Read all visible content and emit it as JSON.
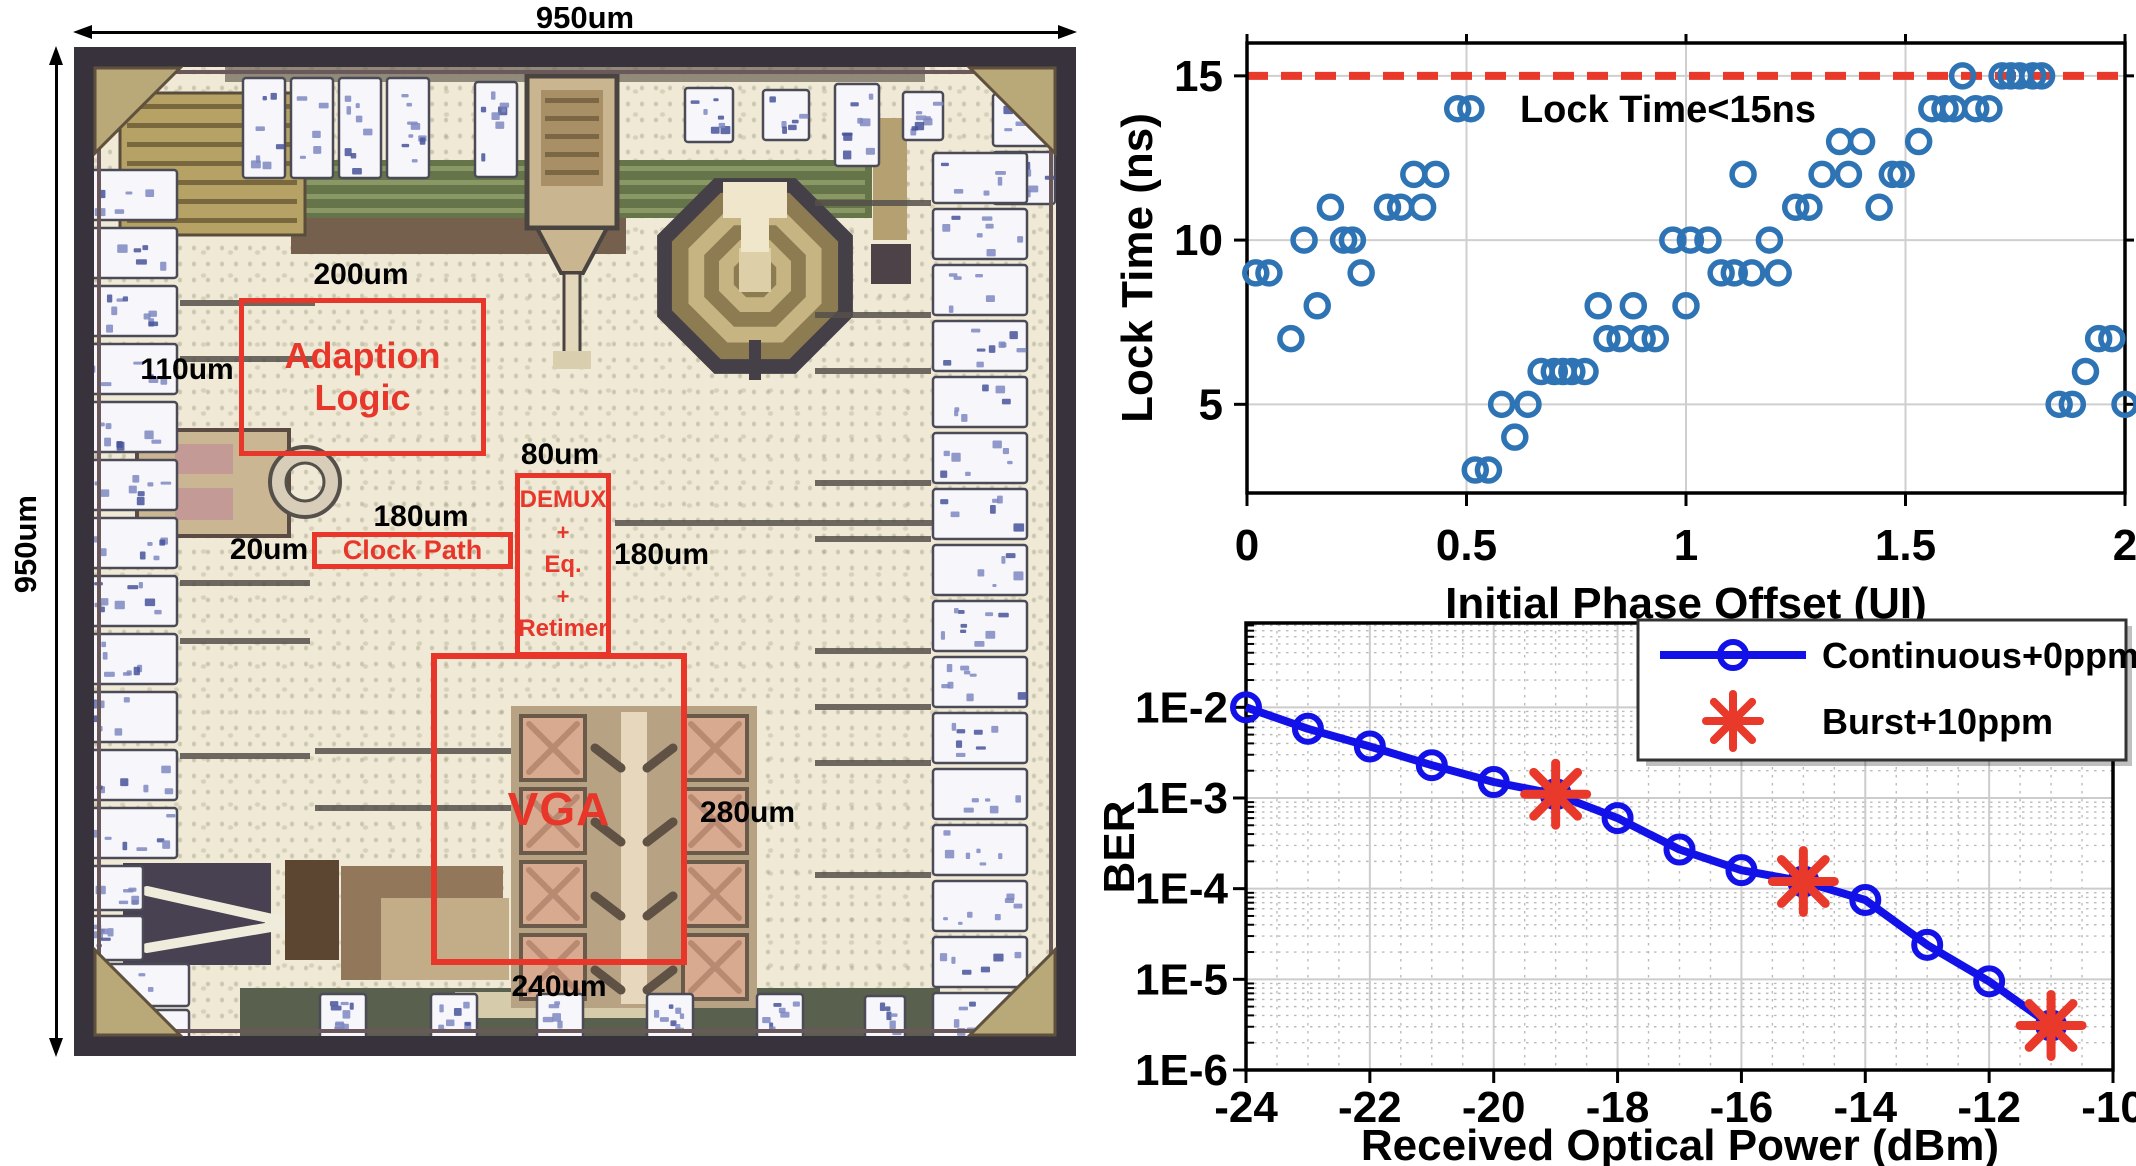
{
  "die": {
    "h_dim": "950um",
    "v_dim": "950um",
    "labels": {
      "adaption_l1": "Adaption",
      "adaption_l2": "Logic",
      "clock": "Clock Path",
      "demux_l1": "DEMUX",
      "demux_plus1": "+",
      "demux_l2": "Eq.",
      "demux_plus2": "+",
      "demux_l3": "Retimer",
      "vga": "VGA"
    },
    "dims": {
      "adaption_top": "200um",
      "adaption_left": "110um",
      "demux_top": "80um",
      "demux_right": "180um",
      "clock_top": "180um",
      "clock_left": "20um",
      "vga_right": "280um",
      "vga_bottom": "240um"
    }
  },
  "chart_data": [
    {
      "id": "lock_time",
      "type": "scatter",
      "title": "",
      "xlabel": "Initial Phase Offset (UI)",
      "ylabel": "Lock Time (ns)",
      "xlim": [
        0,
        2
      ],
      "ylim": [
        2.3,
        16
      ],
      "xticks": [
        0,
        0.5,
        1,
        1.5,
        2
      ],
      "xtick_labels": [
        "0",
        "0.5",
        "1",
        "1.5",
        "2"
      ],
      "yticks": [
        5,
        10,
        15
      ],
      "ytick_labels": [
        "5",
        "10",
        "15"
      ],
      "grid": true,
      "marker_color": "#2e74b5",
      "threshold": {
        "value": 15,
        "color": "#e8392b",
        "style": "dashed",
        "label": "Lock Time<15ns"
      },
      "points": [
        [
          0.02,
          9
        ],
        [
          0.05,
          9
        ],
        [
          0.1,
          7
        ],
        [
          0.13,
          10
        ],
        [
          0.16,
          8
        ],
        [
          0.19,
          11
        ],
        [
          0.22,
          10
        ],
        [
          0.24,
          10
        ],
        [
          0.26,
          9
        ],
        [
          0.32,
          11
        ],
        [
          0.35,
          11
        ],
        [
          0.38,
          12
        ],
        [
          0.4,
          11
        ],
        [
          0.43,
          12
        ],
        [
          0.48,
          14
        ],
        [
          0.51,
          14
        ],
        [
          0.52,
          3
        ],
        [
          0.55,
          3
        ],
        [
          0.58,
          5
        ],
        [
          0.61,
          4
        ],
        [
          0.64,
          5
        ],
        [
          0.67,
          6
        ],
        [
          0.7,
          6
        ],
        [
          0.72,
          6
        ],
        [
          0.74,
          6
        ],
        [
          0.77,
          6
        ],
        [
          0.8,
          8
        ],
        [
          0.82,
          7
        ],
        [
          0.85,
          7
        ],
        [
          0.88,
          8
        ],
        [
          0.9,
          7
        ],
        [
          0.93,
          7
        ],
        [
          0.97,
          10
        ],
        [
          1.0,
          8
        ],
        [
          1.01,
          10
        ],
        [
          1.05,
          10
        ],
        [
          1.08,
          9
        ],
        [
          1.11,
          9
        ],
        [
          1.13,
          12
        ],
        [
          1.15,
          9
        ],
        [
          1.19,
          10
        ],
        [
          1.21,
          9
        ],
        [
          1.25,
          11
        ],
        [
          1.28,
          11
        ],
        [
          1.31,
          12
        ],
        [
          1.35,
          13
        ],
        [
          1.37,
          12
        ],
        [
          1.4,
          13
        ],
        [
          1.44,
          11
        ],
        [
          1.47,
          12
        ],
        [
          1.49,
          12
        ],
        [
          1.53,
          13
        ],
        [
          1.56,
          14
        ],
        [
          1.59,
          14
        ],
        [
          1.61,
          14
        ],
        [
          1.63,
          15
        ],
        [
          1.66,
          14
        ],
        [
          1.69,
          14
        ],
        [
          1.72,
          15
        ],
        [
          1.74,
          15
        ],
        [
          1.76,
          15
        ],
        [
          1.79,
          15
        ],
        [
          1.81,
          15
        ],
        [
          1.85,
          5
        ],
        [
          1.88,
          5
        ],
        [
          1.91,
          6
        ],
        [
          1.94,
          7
        ],
        [
          1.97,
          7
        ],
        [
          2.0,
          5
        ]
      ]
    },
    {
      "id": "ber",
      "type": "line",
      "title": "",
      "xlabel": "Received Optical Power (dBm)",
      "ylabel": "BER",
      "xlim": [
        -24,
        -10
      ],
      "ylog_range": [
        -6,
        -1.07
      ],
      "xticks": [
        -24,
        -22,
        -20,
        -18,
        -16,
        -14,
        -12,
        -10
      ],
      "xtick_labels": [
        "-24",
        "-22",
        "-20",
        "-18",
        "-16",
        "-14",
        "-12",
        "-10"
      ],
      "ytick_exponents": [
        -2,
        -3,
        -4,
        -5,
        -6
      ],
      "ytick_labels": [
        "1E-2",
        "1E-3",
        "1E-4",
        "1E-5",
        "1E-6"
      ],
      "grid": true,
      "legend_position": "top-right",
      "series": [
        {
          "name": "Continuous+0ppm",
          "color": "#1212e8",
          "marker": "circle",
          "x": [
            -24,
            -23,
            -22,
            -21,
            -20,
            -19,
            -18,
            -17,
            -16,
            -15,
            -14,
            -13,
            -12,
            -11
          ],
          "y": [
            0.01,
            0.0058,
            0.0037,
            0.0023,
            0.0015,
            0.0011,
            0.0006,
            0.00027,
            0.00016,
            0.00012,
            7.5e-05,
            2.4e-05,
            9.5e-06,
            3.1e-06
          ]
        },
        {
          "name": "Burst+10ppm",
          "color": "#e8392b",
          "marker": "asterisk",
          "x": [
            -19,
            -15,
            -11
          ],
          "y": [
            0.0011,
            0.00012,
            3.1e-06
          ]
        }
      ]
    }
  ]
}
